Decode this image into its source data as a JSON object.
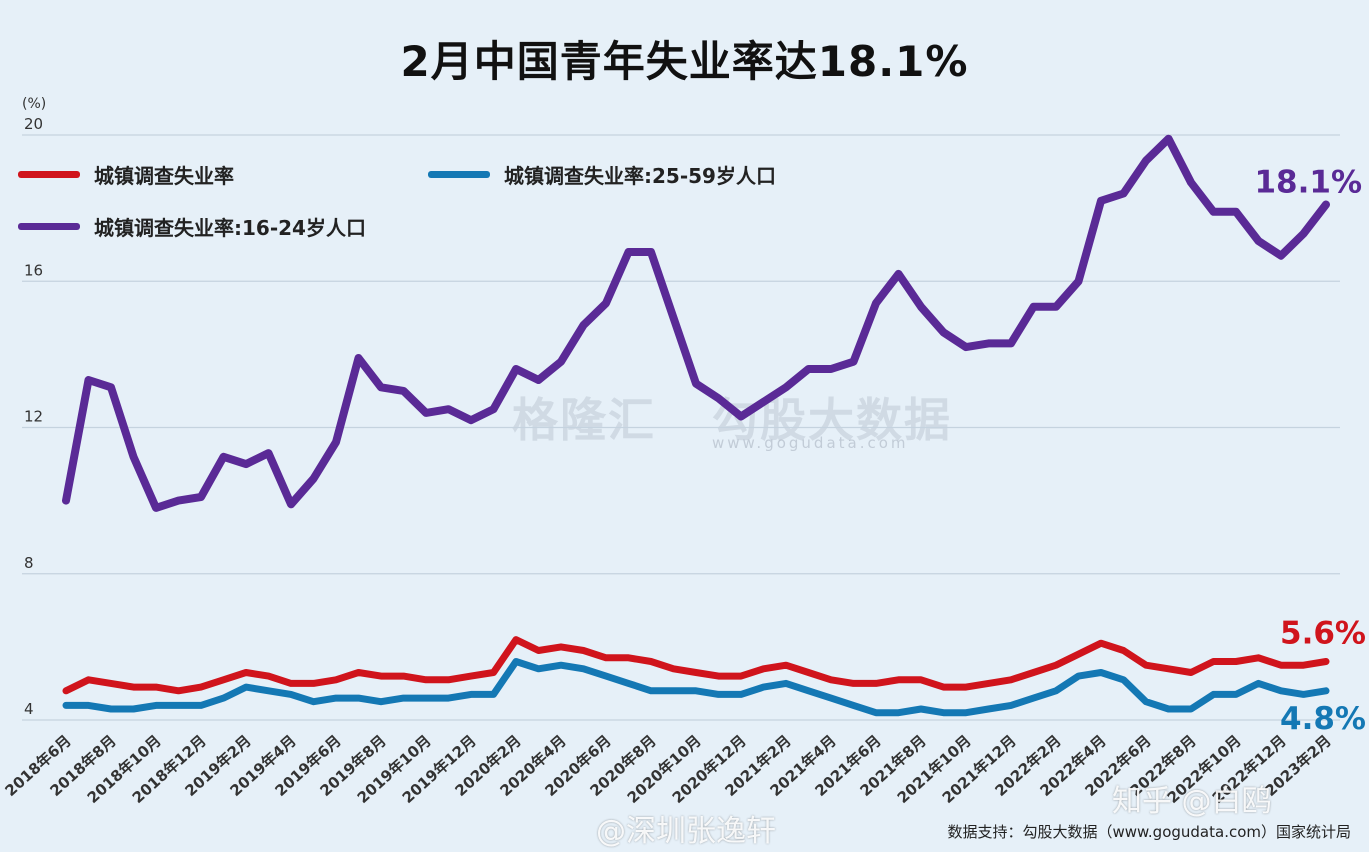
{
  "title": "2月中国青年失业率达18.1%",
  "unit": "(%)",
  "watermarks": {
    "brand": "格隆汇",
    "brand2": "勾股大数据",
    "url": "www.gogudata.com"
  },
  "source": "数据支持：勾股大数据（www.gogudata.com）国家统计局",
  "credits": {
    "weibo": "@深圳张逸轩",
    "zhihu": "知乎 @白鸥"
  },
  "colors": {
    "red": "#d0141c",
    "blue": "#1478b4",
    "purple": "#5a2a96",
    "grid": "#c5d3df"
  },
  "chart_data": {
    "type": "line",
    "ylim": [
      4,
      20
    ],
    "yticks": [
      "4",
      "8",
      "12",
      "16",
      "20"
    ],
    "grid": true,
    "legend_position": "top-left",
    "x_tick_labels": [
      "2018年6月",
      "2018年8月",
      "2018年10月",
      "2018年12月",
      "2019年2月",
      "2019年4月",
      "2019年6月",
      "2019年8月",
      "2019年10月",
      "2019年12月",
      "2020年2月",
      "2020年4月",
      "2020年6月",
      "2020年8月",
      "2020年10月",
      "2020年12月",
      "2021年2月",
      "2021年4月",
      "2021年6月",
      "2021年8月",
      "2021年10月",
      "2021年12月",
      "2022年2月",
      "2022年4月",
      "2022年6月",
      "2022年8月",
      "2022年10月",
      "2022年12月",
      "2023年2月"
    ],
    "series": [
      {
        "name": "城镇调查失业率",
        "color": "#d0141c",
        "end_label": "5.6%",
        "values": [
          4.8,
          5.1,
          5.0,
          4.9,
          4.9,
          4.8,
          4.9,
          5.1,
          5.3,
          5.2,
          5.0,
          5.0,
          5.1,
          5.3,
          5.2,
          5.2,
          5.1,
          5.1,
          5.2,
          5.3,
          6.2,
          5.9,
          6.0,
          5.9,
          5.7,
          5.7,
          5.6,
          5.4,
          5.3,
          5.2,
          5.2,
          5.4,
          5.5,
          5.3,
          5.1,
          5.0,
          5.0,
          5.1,
          5.1,
          4.9,
          4.9,
          5.0,
          5.1,
          5.3,
          5.5,
          5.8,
          6.1,
          5.9,
          5.5,
          5.4,
          5.3,
          5.6,
          5.6,
          5.7,
          5.5,
          5.5,
          5.6
        ]
      },
      {
        "name": "城镇调查失业率:25-59岁人口",
        "color": "#1478b4",
        "end_label": "4.8%",
        "values": [
          4.4,
          4.4,
          4.3,
          4.3,
          4.4,
          4.4,
          4.4,
          4.6,
          4.9,
          4.8,
          4.7,
          4.5,
          4.6,
          4.6,
          4.5,
          4.6,
          4.6,
          4.6,
          4.7,
          4.7,
          5.6,
          5.4,
          5.5,
          5.4,
          5.2,
          5.0,
          4.8,
          4.8,
          4.8,
          4.7,
          4.7,
          4.9,
          5.0,
          4.8,
          4.6,
          4.4,
          4.2,
          4.2,
          4.3,
          4.2,
          4.2,
          4.3,
          4.4,
          4.6,
          4.8,
          5.2,
          5.3,
          5.1,
          4.5,
          4.3,
          4.3,
          4.7,
          4.7,
          5.0,
          4.8,
          4.7,
          4.8
        ]
      },
      {
        "name": "城镇调查失业率:16-24岁人口",
        "color": "#5a2a96",
        "end_label": "18.1%",
        "values": [
          10.0,
          13.3,
          13.1,
          11.2,
          9.8,
          10.0,
          10.1,
          11.2,
          11.0,
          11.3,
          9.9,
          10.6,
          11.6,
          13.9,
          13.1,
          13.0,
          12.4,
          12.5,
          12.2,
          12.5,
          13.6,
          13.3,
          13.8,
          14.8,
          15.4,
          16.8,
          16.8,
          15.0,
          13.2,
          12.8,
          12.3,
          12.7,
          13.1,
          13.6,
          13.6,
          13.8,
          15.4,
          16.2,
          15.3,
          14.6,
          14.2,
          14.3,
          14.3,
          15.3,
          15.3,
          16.0,
          18.2,
          18.4,
          19.3,
          19.9,
          18.7,
          17.9,
          17.9,
          17.1,
          16.7,
          17.3,
          18.1
        ]
      }
    ]
  }
}
